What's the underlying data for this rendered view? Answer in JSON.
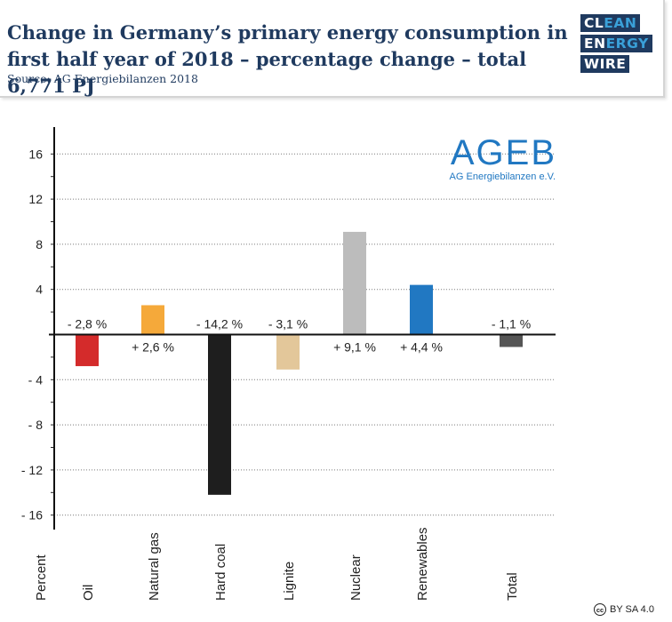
{
  "header": {
    "title": "Change in Germany’s primary energy consumption in first half year of 2018 – percentage change – total 6,771 PJ",
    "source": "Source: AG Energiebilanzen 2018"
  },
  "logo": {
    "line1_a": "CL",
    "line1_b": "EAN",
    "line2_a": "EN",
    "line2_b": "ERGY",
    "line3": "WIRE"
  },
  "license": {
    "icon": "cc",
    "text": "BY SA 4.0"
  },
  "chart_data": {
    "type": "bar",
    "ylabel": "Percent",
    "ylim": [
      -17.5,
      18
    ],
    "yticks": [
      16,
      12,
      8,
      4,
      0,
      -4,
      -8,
      -12,
      -16
    ],
    "ytick_labels": [
      "16",
      "12",
      "8",
      "4",
      "",
      "- 4",
      "- 8",
      "- 12",
      "- 16"
    ],
    "grid": "dotted horizontal",
    "categories": [
      "Oil",
      "Natural gas",
      "Hard coal",
      "Lignite",
      "Nuclear",
      "Renewables",
      "Total"
    ],
    "values": [
      -2.8,
      2.6,
      -14.2,
      -3.1,
      9.1,
      4.4,
      -1.1
    ],
    "data_labels": [
      "- 2,8 %",
      "+ 2,6 %",
      "- 14,2 %",
      "- 3,1 %",
      "+ 9,1 %",
      "+ 4,4 %",
      "- 1,1 %"
    ],
    "colors": [
      "#d42b2b",
      "#f5a93a",
      "#1e1e1e",
      "#e3c79a",
      "#bcbcbc",
      "#2178c2",
      "#555555"
    ],
    "watermark": {
      "name": "AGEB",
      "sub": "AG Energiebilanzen e.V.",
      "color": "#2178c2"
    }
  }
}
